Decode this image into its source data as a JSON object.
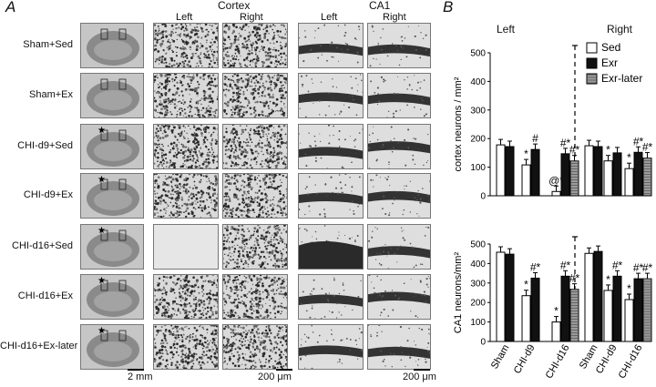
{
  "panel_a": {
    "letter": "A",
    "header_cortex": "Cortex",
    "header_ca1": "CA1",
    "col_left": "Left",
    "col_right": "Right",
    "rows": [
      "Sham+Sed",
      "Sham+Ex",
      "CHI-d9+Sed",
      "CHI-d9+Ex",
      "CHI-d16+Sed",
      "CHI-d16+Ex",
      "CHI-d16+Ex-later"
    ],
    "lesion_star_rows": [
      2,
      3,
      4,
      5,
      6
    ],
    "scale_brain": "2 mm",
    "scale_cortex": "200 μm",
    "scale_ca1": "200 μm"
  },
  "panel_b": {
    "letter": "B",
    "col_left": "Left",
    "col_right": "Right"
  },
  "chart_data": [
    {
      "type": "bar",
      "title": "",
      "panel": "Left",
      "ylabel": "cortex neurons / mm²",
      "ylim": [
        0,
        500
      ],
      "yticks": [
        0,
        100,
        200,
        300,
        400,
        500
      ],
      "categories": [
        "Sham",
        "CHI-d9",
        "CHI-d16"
      ],
      "series": [
        {
          "name": "Sed",
          "values": [
            178,
            108,
            15
          ]
        },
        {
          "name": "Exr",
          "values": [
            172,
            162,
            147
          ]
        },
        {
          "name": "Exr-later",
          "values": [
            null,
            null,
            122
          ]
        }
      ],
      "annotations": [
        [
          "",
          ""
        ],
        [
          "*",
          "#"
        ],
        [
          "@*",
          "#*",
          "#*"
        ]
      ]
    },
    {
      "type": "bar",
      "title": "",
      "panel": "Right",
      "ylabel": "cortex neurons / mm²",
      "ylim": [
        0,
        500
      ],
      "yticks": [
        0,
        100,
        200,
        300,
        400,
        500
      ],
      "categories": [
        "Sham",
        "CHI-d9",
        "CHI-d16"
      ],
      "series": [
        {
          "name": "Sed",
          "values": [
            175,
            122,
            95
          ]
        },
        {
          "name": "Exr",
          "values": [
            172,
            150,
            152
          ]
        },
        {
          "name": "Exr-later",
          "values": [
            null,
            null,
            132
          ]
        }
      ],
      "annotations": [
        [
          "",
          ""
        ],
        [
          "*",
          ""
        ],
        [
          "*",
          "#*",
          "#*"
        ]
      ]
    },
    {
      "type": "bar",
      "title": "",
      "panel": "Left",
      "ylabel": "CA1 neurons/mm²",
      "ylim": [
        0,
        500
      ],
      "yticks": [
        0,
        100,
        200,
        300,
        400,
        500
      ],
      "categories": [
        "Sham",
        "CHI-d9",
        "CHI-d16"
      ],
      "series": [
        {
          "name": "Sed",
          "values": [
            458,
            235,
            100
          ]
        },
        {
          "name": "Exr",
          "values": [
            448,
            325,
            335
          ]
        },
        {
          "name": "Exr-later",
          "values": [
            null,
            null,
            268
          ]
        }
      ],
      "annotations": [
        [
          "",
          ""
        ],
        [
          "*",
          "#*"
        ],
        [
          "*",
          "#*",
          "#*"
        ]
      ]
    },
    {
      "type": "bar",
      "title": "",
      "panel": "Right",
      "ylabel": "CA1 neurons/mm²",
      "ylim": [
        0,
        500
      ],
      "yticks": [
        0,
        100,
        200,
        300,
        400,
        500
      ],
      "categories": [
        "Sham",
        "CHI-d9",
        "CHI-d16"
      ],
      "series": [
        {
          "name": "Sed",
          "values": [
            452,
            262,
            215
          ]
        },
        {
          "name": "Exr",
          "values": [
            462,
            335,
            322
          ]
        },
        {
          "name": "Exr-later",
          "values": [
            null,
            null,
            322
          ]
        }
      ],
      "annotations": [
        [
          "",
          ""
        ],
        [
          "*",
          "#*"
        ],
        [
          "*",
          "#*",
          "#*"
        ]
      ]
    }
  ],
  "colors": {
    "sed": "#ffffff",
    "exr": "#111111",
    "exr_later": "#9a9a9a"
  }
}
